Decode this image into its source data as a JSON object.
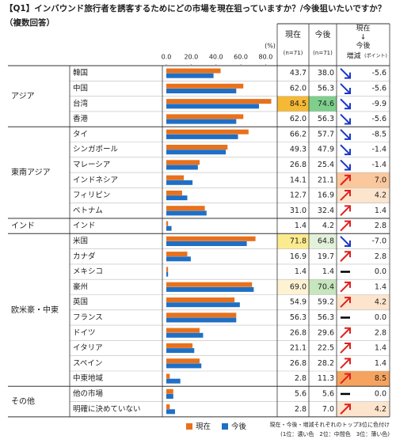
{
  "chart_data": {
    "type": "bar",
    "orientation": "horizontal",
    "title": "【Q1】インバウンド旅行者を誘客するためにどの市場を現在狙っていますか？/今後狙いたいですか？",
    "subtitle": "（複数回答）",
    "axis_unit": "(%)",
    "groups": [
      {
        "label": "アジア",
        "categories": [
          "韓国",
          "中国",
          "台湾",
          "香港"
        ]
      },
      {
        "label": "東南アジア",
        "categories": [
          "タイ",
          "シンガポール",
          "マレーシア",
          "インドネシア",
          "フィリピン",
          "ベトナム"
        ]
      },
      {
        "label": "インド",
        "categories": [
          "インド"
        ]
      },
      {
        "label": "欧米豪・中東",
        "categories": [
          "米国",
          "カナダ",
          "メキシコ",
          "豪州",
          "英国",
          "フランス",
          "ドイツ",
          "イタリア",
          "スペイン",
          "中東地域"
        ]
      },
      {
        "label": "その他",
        "categories": [
          "他の市場",
          "明確に決めていない"
        ]
      }
    ],
    "series": [
      {
        "name": "現在",
        "n_label": "(n=71)",
        "color": "#e8711c",
        "values": [
          43.7,
          62.0,
          84.5,
          62.0,
          66.2,
          49.3,
          26.8,
          14.1,
          12.7,
          31.0,
          1.4,
          71.8,
          16.9,
          1.4,
          69.0,
          54.9,
          56.3,
          26.8,
          21.1,
          26.8,
          2.8,
          5.6,
          2.8
        ],
        "value_labels": [
          "43.7",
          "62.0",
          "84.5",
          "62.0",
          "66.2",
          "49.3",
          "26.8",
          "14.1",
          "12.7",
          "31.0",
          "1.4",
          "71.8",
          "16.9",
          "1.4",
          "69.0",
          "54.9",
          "56.3",
          "26.8",
          "21.1",
          "26.8",
          "2.8",
          "5.6",
          "2.8"
        ]
      },
      {
        "name": "今後",
        "n_label": "(n=71)",
        "color": "#1f6fc5",
        "values": [
          38.0,
          56.3,
          74.6,
          56.3,
          57.7,
          47.9,
          25.4,
          21.1,
          16.9,
          32.4,
          4.2,
          64.8,
          19.7,
          1.4,
          70.4,
          59.2,
          56.3,
          29.6,
          22.5,
          28.2,
          11.3,
          5.6,
          7.0
        ],
        "value_labels": [
          "38.0",
          "56.3",
          "74.6",
          "56.3",
          "57.7",
          "47.9",
          "25.4",
          "21.1",
          "16.9",
          "32.4",
          "4.2",
          "64.8",
          "19.7",
          "1.4",
          "70.4",
          "59.2",
          "56.3",
          "29.6",
          "22.5",
          "28.2",
          "11.3",
          "5.6",
          "7.0"
        ]
      }
    ],
    "change": {
      "header": [
        "現在",
        "↓",
        "今後",
        "増減"
      ],
      "unit": "(ポイント)",
      "values": [
        -5.6,
        -5.6,
        -9.9,
        -5.6,
        -8.5,
        -1.4,
        -1.4,
        7.0,
        4.2,
        1.4,
        2.8,
        -7.0,
        2.8,
        0.0,
        1.4,
        4.2,
        0.0,
        2.8,
        1.4,
        1.4,
        8.5,
        0.0,
        4.2
      ],
      "value_labels": [
        "-5.6",
        "-5.6",
        "-9.9",
        "-5.6",
        "-8.5",
        "-1.4",
        "-1.4",
        "7.0",
        "4.2",
        "1.4",
        "2.8",
        "-7.0",
        "2.8",
        "0.0",
        "1.4",
        "4.2",
        "0.0",
        "2.8",
        "1.4",
        "1.4",
        "8.5",
        "0.0",
        "4.2"
      ]
    },
    "highlights": [
      {
        "column": "series.0",
        "index": 2,
        "color": "#f6b935"
      },
      {
        "column": "series.0",
        "index": 11,
        "color": "#fbeb8f"
      },
      {
        "column": "series.0",
        "index": 14,
        "color": "#fdf3d3"
      },
      {
        "column": "series.1",
        "index": 2,
        "color": "#7fcf8c"
      },
      {
        "column": "series.1",
        "index": 14,
        "color": "#c6e6bd"
      },
      {
        "column": "series.1",
        "index": 11,
        "color": "#e3f1da"
      },
      {
        "column": "change",
        "index": 20,
        "color": "#f5a35e"
      },
      {
        "column": "change",
        "index": 7,
        "color": "#fbc79c"
      },
      {
        "column": "change",
        "index": 8,
        "color": "#fde4cd"
      },
      {
        "column": "change",
        "index": 15,
        "color": "#fde4cd"
      },
      {
        "column": "change",
        "index": 22,
        "color": "#fde4cd"
      }
    ],
    "arrow_colors": {
      "up": "#e02020",
      "down": "#1a35c8",
      "flat": "#000000"
    },
    "xlim": [
      0,
      88
    ],
    "xticks": [
      {
        "value": 0,
        "label": "0.0"
      },
      {
        "value": 20,
        "label": "20.0"
      },
      {
        "value": 40,
        "label": "40.0"
      },
      {
        "value": 60,
        "label": "60.0"
      },
      {
        "value": 80,
        "label": "80.0"
      }
    ],
    "footnote": [
      "現在・今後・増減それぞれのトップ3位に色付け",
      "(1位：濃い色　2位：中間色　3位：薄い色)"
    ]
  }
}
